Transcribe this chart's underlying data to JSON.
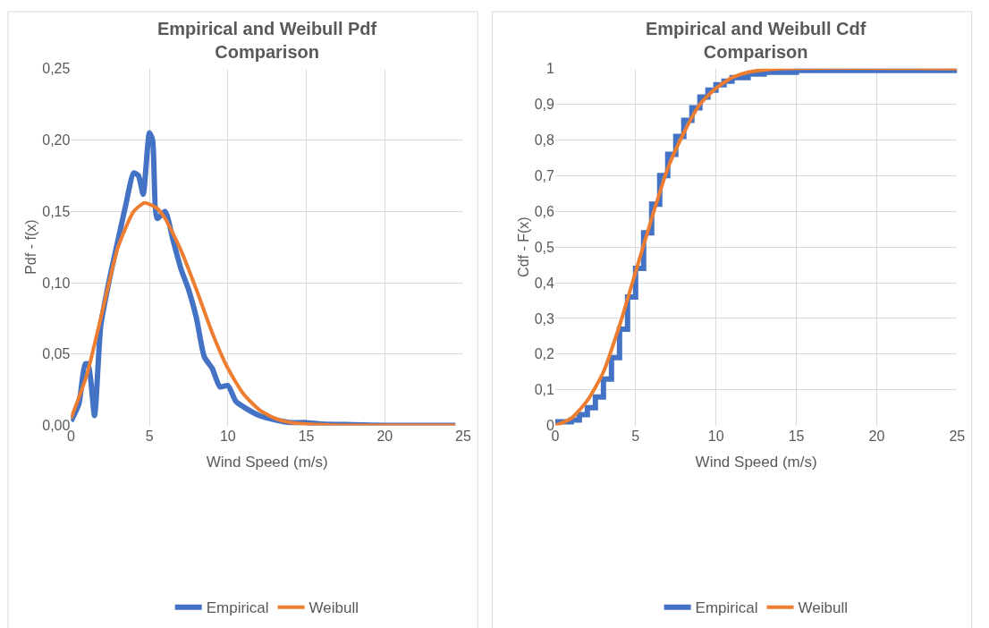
{
  "chart_data": [
    {
      "type": "line",
      "title": "Empirical and Weibull Pdf Comparison",
      "xlabel": "Wind Speed (m/s)",
      "ylabel": "Pdf - f(x)",
      "xlim": [
        0,
        25
      ],
      "xticks": [
        0,
        5,
        10,
        15,
        20,
        25
      ],
      "ylim": [
        0,
        0.25
      ],
      "yticks": [
        {
          "value": 0,
          "label": "0,00"
        },
        {
          "value": 0.05,
          "label": "0,05"
        },
        {
          "value": 0.1,
          "label": "0,10"
        },
        {
          "value": 0.15,
          "label": "0,15"
        },
        {
          "value": 0.2,
          "label": "0,20"
        },
        {
          "value": 0.25,
          "label": "0,25"
        }
      ],
      "grid": true,
      "legend": "bottom",
      "marker": "none",
      "line_style": "solid",
      "series": [
        {
          "name": "Empirical",
          "color": "#4472c4",
          "x": [
            0,
            0.5,
            0.9,
            1.1,
            1.5,
            1.9,
            2.5,
            3,
            3.5,
            4,
            4.3,
            4.6,
            5,
            5.2,
            5.5,
            6,
            6.5,
            7,
            7.5,
            8,
            8.5,
            9,
            9.5,
            10,
            10.5,
            11,
            12,
            13,
            14,
            15,
            16,
            18,
            20,
            24.5
          ],
          "values": [
            0.003,
            0.015,
            0.043,
            0.043,
            0.007,
            0.07,
            0.105,
            0.13,
            0.155,
            0.177,
            0.175,
            0.162,
            0.205,
            0.2,
            0.145,
            0.15,
            0.13,
            0.11,
            0.095,
            0.075,
            0.048,
            0.04,
            0.027,
            0.028,
            0.017,
            0.013,
            0.007,
            0.004,
            0.002,
            0.002,
            0.001,
            0.0005,
            0,
            0
          ]
        },
        {
          "name": "Weibull",
          "color": "#ed7d31",
          "x": [
            0,
            1,
            2,
            3,
            4,
            4.7,
            5.5,
            6,
            7,
            8,
            9,
            10,
            11,
            12,
            13,
            14,
            16,
            18,
            24.5
          ],
          "values": [
            0.005,
            0.035,
            0.08,
            0.125,
            0.15,
            0.156,
            0.152,
            0.145,
            0.123,
            0.095,
            0.065,
            0.04,
            0.022,
            0.011,
            0.005,
            0.002,
            0.0005,
            0,
            0
          ]
        }
      ]
    },
    {
      "type": "line",
      "title": "Empirical and Weibull Cdf Comparison",
      "xlabel": "Wind Speed (m/s)",
      "ylabel": "Cdf - F(x)",
      "xlim": [
        0,
        25
      ],
      "xticks": [
        0,
        5,
        10,
        15,
        20,
        25
      ],
      "ylim": [
        0,
        1
      ],
      "yticks": [
        0,
        {
          "value": 0.1,
          "label": "0,1"
        },
        {
          "value": 0.2,
          "label": "0,2"
        },
        {
          "value": 0.3,
          "label": "0,3"
        },
        {
          "value": 0.4,
          "label": "0,4"
        },
        {
          "value": 0.5,
          "label": "0,5"
        },
        {
          "value": 0.6,
          "label": "0,6"
        },
        {
          "value": 0.7,
          "label": "0,7"
        },
        {
          "value": 0.8,
          "label": "0,8"
        },
        {
          "value": 0.9,
          "label": "0,9"
        },
        1
      ],
      "grid": true,
      "legend": "bottom",
      "marker": "none",
      "line_style": "solid",
      "series": [
        {
          "name": "Empirical",
          "type": "step",
          "color": "#4472c4",
          "x": [
            0,
            1,
            1.5,
            2,
            2.5,
            3,
            3.5,
            4,
            4.5,
            5,
            5.5,
            6,
            6.5,
            7,
            7.5,
            8,
            8.5,
            9,
            9.5,
            10,
            10.5,
            11,
            12,
            13,
            15,
            25
          ],
          "values": [
            0.01,
            0.015,
            0.03,
            0.05,
            0.08,
            0.13,
            0.19,
            0.27,
            0.36,
            0.44,
            0.54,
            0.62,
            0.7,
            0.76,
            0.81,
            0.855,
            0.89,
            0.92,
            0.94,
            0.955,
            0.965,
            0.975,
            0.985,
            0.99,
            0.995,
            0.995
          ]
        },
        {
          "name": "Weibull",
          "color": "#ed7d31",
          "x": [
            0,
            1,
            2,
            3,
            4,
            5,
            6,
            7,
            8,
            9,
            10,
            11,
            12,
            14,
            25
          ],
          "values": [
            0,
            0.02,
            0.07,
            0.15,
            0.28,
            0.43,
            0.58,
            0.72,
            0.82,
            0.9,
            0.945,
            0.975,
            0.99,
            1,
            1
          ]
        }
      ]
    }
  ]
}
